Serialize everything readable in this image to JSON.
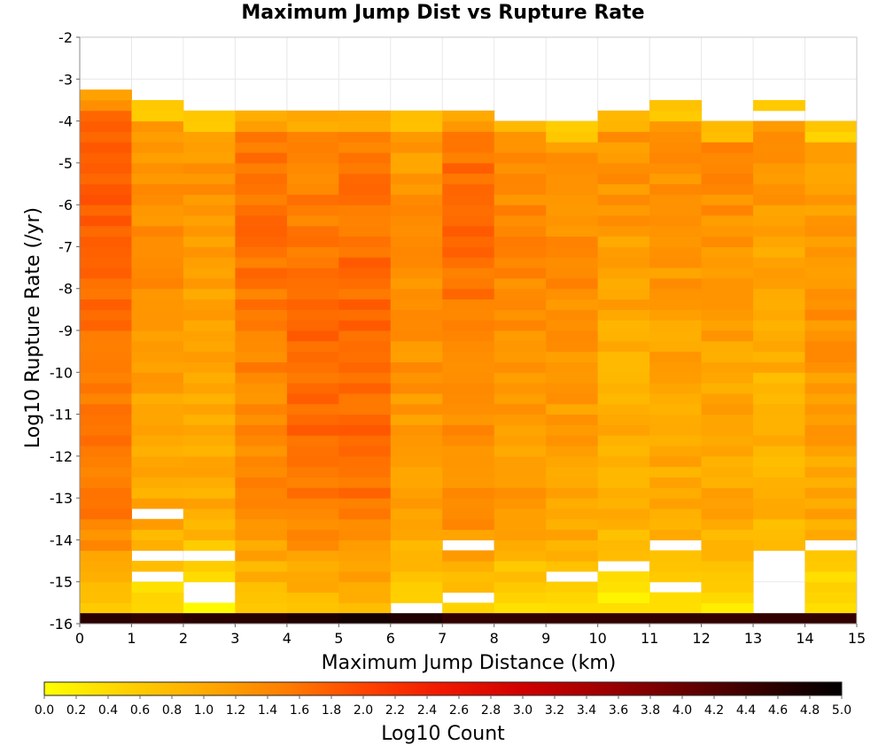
{
  "chart_data": {
    "type": "heatmap",
    "title": "Maximum Jump Dist vs Rupture Rate",
    "xlabel": "Maximum Jump Distance (km)",
    "ylabel": "Log10 Rupture Rate (/yr)",
    "colorbar_label": "Log10 Count",
    "xlim": [
      0,
      15
    ],
    "ylim": [
      -16,
      -2
    ],
    "clim": [
      0,
      5
    ],
    "x_ticks": [
      "0",
      "1",
      "2",
      "3",
      "4",
      "5",
      "6",
      "7",
      "8",
      "9",
      "10",
      "11",
      "12",
      "13",
      "14",
      "15"
    ],
    "y_ticks": [
      "-2",
      "-3",
      "-4",
      "-5",
      "-6",
      "-7",
      "-8",
      "-9",
      "-10",
      "-11",
      "-12",
      "-13",
      "-14",
      "-15",
      "-16"
    ],
    "colorbar_ticks": [
      "0.0",
      "0.2",
      "0.4",
      "0.6",
      "0.8",
      "1.0",
      "1.2",
      "1.4",
      "1.6",
      "1.8",
      "2.0",
      "2.2",
      "2.4",
      "2.6",
      "2.8",
      "3.0",
      "3.2",
      "3.4",
      "3.6",
      "3.8",
      "4.0",
      "4.2",
      "4.4",
      "4.6",
      "4.8",
      "5.0"
    ],
    "y_bin_width": 0.25,
    "bottom_row_values": [
      4.6,
      4.5,
      4.6,
      4.6,
      4.7,
      4.8,
      4.7,
      4.5,
      4.5,
      4.5,
      4.5,
      4.5,
      4.5,
      4.5,
      4.5
    ],
    "columns": [
      {
        "x": 0.5,
        "y_top": -3.25,
        "base": 1.5,
        "amp": 0.3,
        "peak": -5.5,
        "missing": []
      },
      {
        "x": 1.5,
        "y_top": -3.5,
        "base": 1.05,
        "amp": 0.3,
        "peak": -6.5,
        "missing": [
          -13.5,
          -14.5,
          -15.0
        ]
      },
      {
        "x": 2.5,
        "y_top": -3.75,
        "base": 0.95,
        "amp": 0.3,
        "peak": -6.0,
        "missing": [
          -14.5,
          -15.25,
          -15.5
        ]
      },
      {
        "x": 3.5,
        "y_top": -3.75,
        "base": 1.35,
        "amp": 0.25,
        "peak": -6.5,
        "missing": []
      },
      {
        "x": 4.5,
        "y_top": -3.75,
        "base": 1.45,
        "amp": 0.25,
        "peak": -10.0,
        "missing": []
      },
      {
        "x": 5.5,
        "y_top": -3.75,
        "base": 1.5,
        "amp": 0.25,
        "peak": -9.5,
        "missing": []
      },
      {
        "x": 6.5,
        "y_top": -3.75,
        "base": 1.1,
        "amp": 0.25,
        "peak": -8.0,
        "missing": [
          -15.75
        ]
      },
      {
        "x": 7.5,
        "y_top": -3.75,
        "base": 1.35,
        "amp": 0.3,
        "peak": -6.25,
        "missing": [
          -14.25,
          -15.5
        ]
      },
      {
        "x": 8.5,
        "y_top": -3.75,
        "base": 1.15,
        "amp": 0.25,
        "peak": -7.0,
        "missing": [
          -4.0
        ]
      },
      {
        "x": 9.5,
        "y_top": -4.0,
        "base": 1.1,
        "amp": 0.25,
        "peak": -7.5,
        "missing": [
          -15.0
        ]
      },
      {
        "x": 10.5,
        "y_top": -3.75,
        "base": 0.95,
        "amp": 0.3,
        "peak": -5.0,
        "missing": [
          -14.75
        ]
      },
      {
        "x": 11.5,
        "y_top": -3.5,
        "base": 1.0,
        "amp": 0.3,
        "peak": -6.0,
        "missing": [
          -14.25,
          -15.25
        ]
      },
      {
        "x": 12.5,
        "y_top": -4.0,
        "base": 1.05,
        "amp": 0.3,
        "peak": -5.0,
        "missing": []
      },
      {
        "x": 13.5,
        "y_top": -3.5,
        "base": 0.9,
        "amp": 0.3,
        "peak": -5.0,
        "missing": [
          -4.0,
          -14.5,
          -14.75,
          -15.0,
          -15.25,
          -15.5,
          -15.75
        ]
      },
      {
        "x": 14.5,
        "y_top": -4.0,
        "base": 1.0,
        "amp": 0.3,
        "peak": -8.5,
        "missing": [
          -14.25
        ]
      }
    ]
  }
}
